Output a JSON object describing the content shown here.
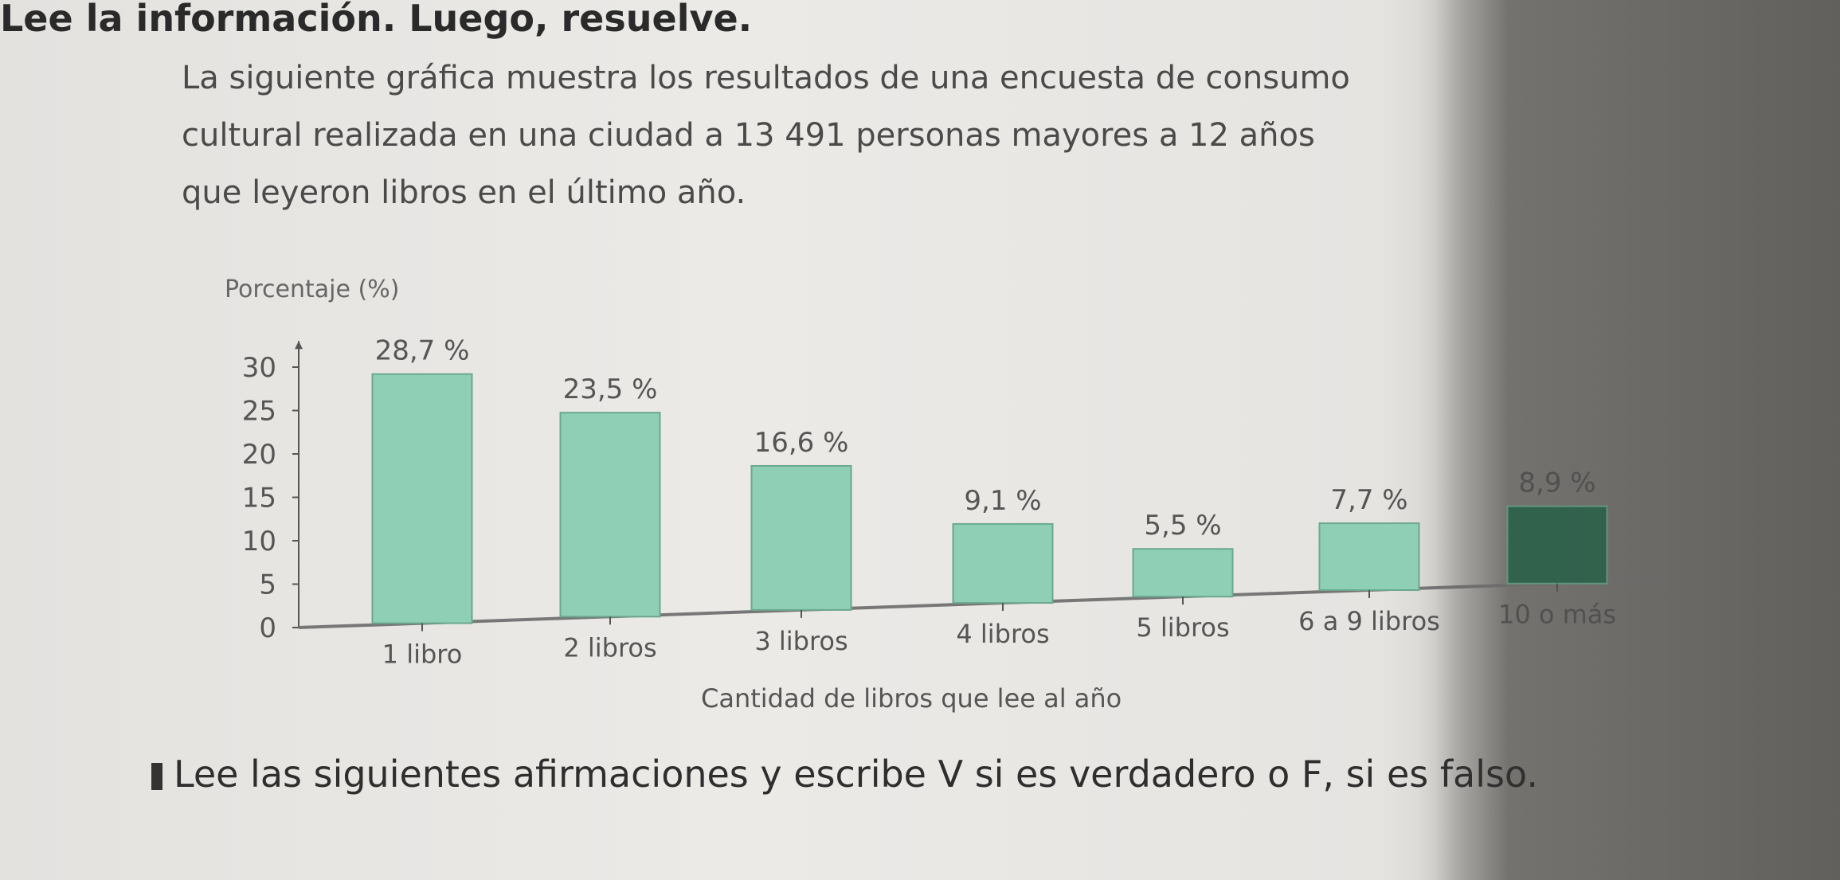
{
  "header": {
    "title": "Lee la información. Luego, resuelve."
  },
  "intro": {
    "lines": [
      "La siguiente gráfica muestra los resultados de una encuesta de consumo",
      "cultural realizada en una ciudad a 13 491 personas mayores a 12 años",
      "que leyeron libros en el último año."
    ]
  },
  "chart_data": {
    "type": "bar",
    "title": "",
    "ylabel": "Porcentaje (%)",
    "xlabel": "Cantidad de libros que lee al año",
    "categories": [
      "1 libro",
      "2 libros",
      "3 libros",
      "4 libros",
      "5 libros",
      "6 a 9 libros",
      "10 o más"
    ],
    "values": [
      28.7,
      23.5,
      16.6,
      9.1,
      5.5,
      7.7,
      8.9
    ],
    "data_labels": [
      "28,7 %",
      "23,5 %",
      "16,6 %",
      "9,1 %",
      "5,5 %",
      "7,7 %",
      "8,9 %"
    ],
    "yticks": [
      0,
      5,
      10,
      15,
      20,
      25,
      30
    ],
    "ylim": [
      0,
      32
    ],
    "grid": false,
    "colors": {
      "bar": "#8fcfb6",
      "highlight": "#2f6a50",
      "highlight_index": 6
    }
  },
  "instruction": {
    "text": "Lee las siguientes afirmaciones y escribe V si es verdadero o F, si es falso."
  }
}
